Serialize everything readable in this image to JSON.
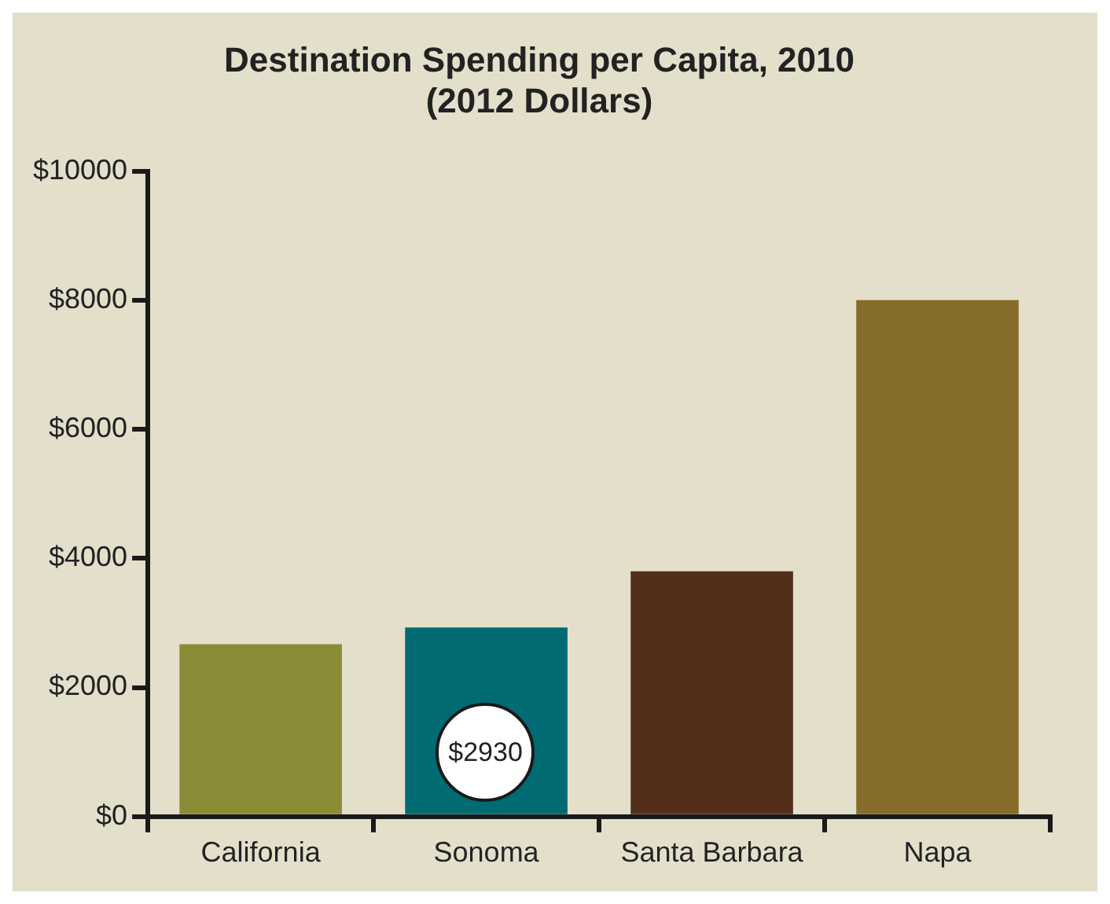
{
  "chart_data": {
    "type": "bar",
    "title": "Destination Spending per Capita, 2010\n(2012 Dollars)",
    "categories": [
      "California",
      "Sonoma",
      "Santa Barbara",
      "Napa"
    ],
    "values": [
      2670,
      2930,
      3800,
      8000
    ],
    "colors": [
      "#8b8b35",
      "#006b73",
      "#532f1b",
      "#866d2a"
    ],
    "value_labels": [
      null,
      "$2930",
      null,
      null
    ],
    "ylim": [
      0,
      10000
    ],
    "yticks": [
      {
        "value": 0,
        "label": "$0"
      },
      {
        "value": 2000,
        "label": "$2000"
      },
      {
        "value": 4000,
        "label": "$4000"
      },
      {
        "value": 6000,
        "label": "$6000"
      },
      {
        "value": 8000,
        "label": "$8000"
      },
      {
        "value": 10000,
        "label": "$10000"
      }
    ]
  }
}
